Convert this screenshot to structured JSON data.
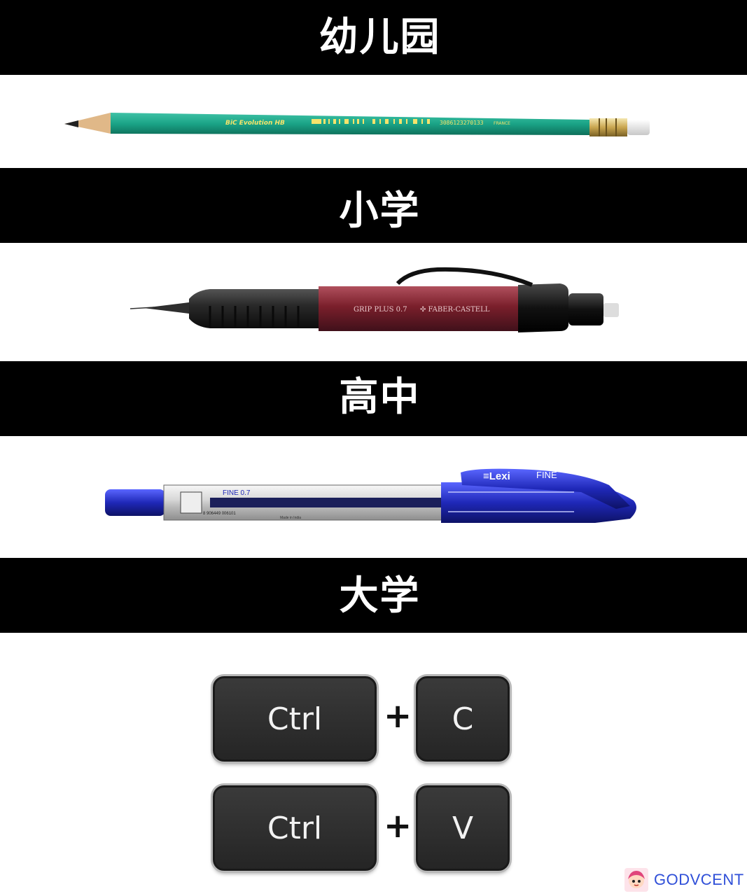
{
  "stages": [
    {
      "label": "幼儿园"
    },
    {
      "label": "小学"
    },
    {
      "label": "高中"
    },
    {
      "label": "大学"
    }
  ],
  "items": {
    "pencil": {
      "brand": "BiC",
      "model": "Evolution HB",
      "barcode": "3086123270133",
      "origin": "FRANCE",
      "color": "#1aa386"
    },
    "mechanical_pencil": {
      "model": "GRIP PLUS 0.7",
      "brand": "FABER-CASTELL",
      "color": "#7a1f2b"
    },
    "gel_pen": {
      "brand": "Lexi",
      "model": "FINE",
      "tip": "0.7",
      "made_in": "Made in India",
      "barcode": "8 906449 006101",
      "color": "#1f28b8"
    }
  },
  "shortcuts": [
    {
      "modifier": "Ctrl",
      "plus": "+",
      "key": "C"
    },
    {
      "modifier": "Ctrl",
      "plus": "+",
      "key": "V"
    }
  ],
  "watermark": {
    "text": "GODVCENT",
    "icon": "cartoon-girl-icon"
  }
}
